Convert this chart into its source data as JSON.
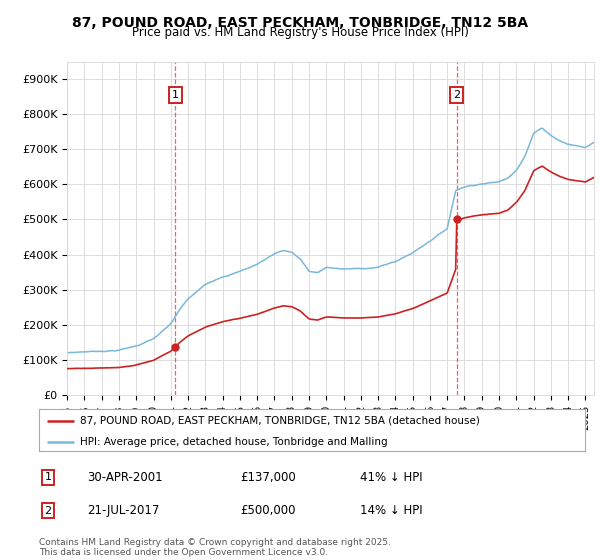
{
  "title_line1": "87, POUND ROAD, EAST PECKHAM, TONBRIDGE, TN12 5BA",
  "title_line2": "Price paid vs. HM Land Registry's House Price Index (HPI)",
  "hpi_color": "#7ab8d9",
  "price_color": "#cc2222",
  "dashed_color": "#dd4444",
  "background_color": "#ffffff",
  "plot_bg_color": "#ffffff",
  "grid_color": "#d8d8d8",
  "ylim": [
    0,
    950000
  ],
  "yticks": [
    0,
    100000,
    200000,
    300000,
    400000,
    500000,
    600000,
    700000,
    800000,
    900000
  ],
  "ytick_labels": [
    "£0",
    "£100K",
    "£200K",
    "£300K",
    "£400K",
    "£500K",
    "£600K",
    "£700K",
    "£800K",
    "£900K"
  ],
  "purchase1_x": 2001.25,
  "purchase1_y": 137000,
  "purchase2_x": 2017.55,
  "purchase2_y": 500000,
  "legend_line1": "87, POUND ROAD, EAST PECKHAM, TONBRIDGE, TN12 5BA (detached house)",
  "legend_line2": "HPI: Average price, detached house, Tonbridge and Malling",
  "table_row1": [
    "1",
    "30-APR-2001",
    "£137,000",
    "41% ↓ HPI"
  ],
  "table_row2": [
    "2",
    "21-JUL-2017",
    "£500,000",
    "14% ↓ HPI"
  ],
  "footnote": "Contains HM Land Registry data © Crown copyright and database right 2025.\nThis data is licensed under the Open Government Licence v3.0.",
  "xmin": 1995,
  "xmax": 2025.5
}
